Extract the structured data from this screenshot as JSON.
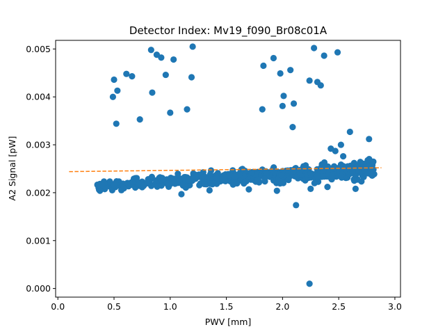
{
  "chart_data": {
    "type": "scatter",
    "title": "Detector Index: Mv19_f090_Br08c01A",
    "xlabel": "PWV [mm]",
    "ylabel": "A2 Signal [pW]",
    "xlim": [
      -0.02,
      3.05
    ],
    "ylim": [
      -0.00018,
      0.00518
    ],
    "xticks": [
      0.0,
      0.5,
      1.0,
      1.5,
      2.0,
      2.5,
      3.0
    ],
    "xtick_labels": [
      "0.0",
      "0.5",
      "1.0",
      "1.5",
      "2.0",
      "2.5",
      "3.0"
    ],
    "yticks": [
      0.0,
      0.001,
      0.002,
      0.003,
      0.004,
      0.005
    ],
    "ytick_labels": [
      "0.000",
      "0.001",
      "0.002",
      "0.003",
      "0.004",
      "0.005"
    ],
    "colors": {
      "points": "#1f77b4",
      "fit": "#ff7f0e"
    },
    "fit_line": {
      "name": "fit",
      "x": [
        0.1,
        2.88
      ],
      "y": [
        0.00244,
        0.00252
      ]
    },
    "outliers": [
      [
        0.49,
        0.004
      ],
      [
        0.5,
        0.00436
      ],
      [
        0.52,
        0.00344
      ],
      [
        0.53,
        0.00413
      ],
      [
        0.61,
        0.00448
      ],
      [
        0.66,
        0.00443
      ],
      [
        0.73,
        0.00353
      ],
      [
        0.83,
        0.00498
      ],
      [
        0.84,
        0.00409
      ],
      [
        0.88,
        0.00488
      ],
      [
        0.92,
        0.00482
      ],
      [
        0.96,
        0.00446
      ],
      [
        1.0,
        0.00367
      ],
      [
        1.03,
        0.00478
      ],
      [
        1.15,
        0.00374
      ],
      [
        1.19,
        0.00441
      ],
      [
        1.2,
        0.00505
      ],
      [
        1.82,
        0.00374
      ],
      [
        1.83,
        0.00465
      ],
      [
        1.92,
        0.00481
      ],
      [
        1.98,
        0.00449
      ],
      [
        2.0,
        0.00381
      ],
      [
        2.01,
        0.00402
      ],
      [
        2.07,
        0.00456
      ],
      [
        2.09,
        0.00337
      ],
      [
        2.1,
        0.00386
      ],
      [
        2.12,
        0.00174
      ],
      [
        2.24,
        0.00434
      ],
      [
        2.24,
        0.0001
      ],
      [
        2.28,
        0.00502
      ],
      [
        2.31,
        0.00431
      ],
      [
        2.34,
        0.00424
      ],
      [
        2.37,
        0.00486
      ],
      [
        2.49,
        0.00493
      ],
      [
        2.43,
        0.00292
      ],
      [
        2.52,
        0.003
      ],
      [
        2.6,
        0.00327
      ],
      [
        2.77,
        0.00312
      ],
      [
        2.54,
        0.00276
      ],
      [
        2.47,
        0.00287
      ],
      [
        1.1,
        0.00197
      ],
      [
        1.95,
        0.00204
      ],
      [
        2.25,
        0.00208
      ],
      [
        1.35,
        0.00205
      ],
      [
        1.7,
        0.00207
      ],
      [
        2.4,
        0.00212
      ],
      [
        2.65,
        0.00208
      ]
    ],
    "cluster": {
      "description": "dense band of ~500 points",
      "x_range": [
        0.35,
        2.82
      ],
      "count": 520,
      "y_start": 0.00214,
      "y_end": 0.00249,
      "spread": 6e-05
    }
  }
}
